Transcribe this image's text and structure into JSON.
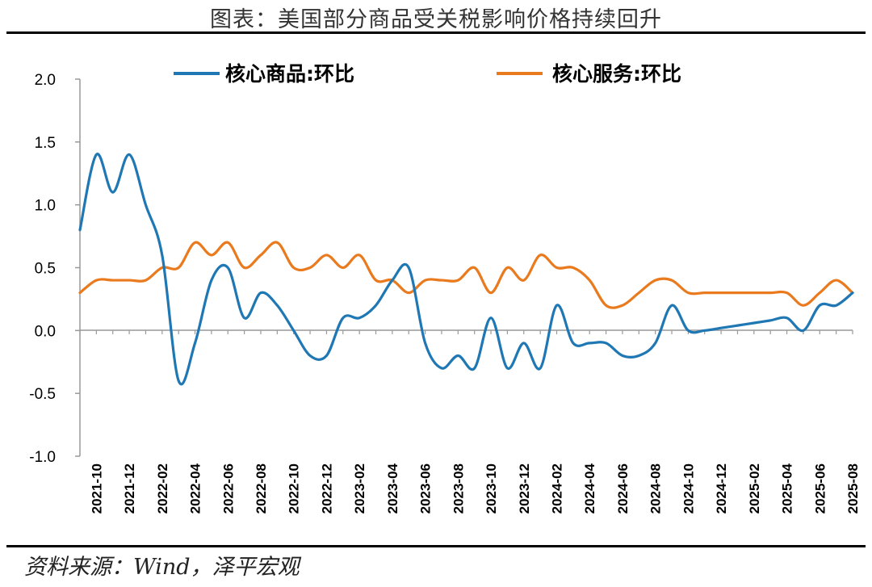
{
  "title": "图表：美国部分商品受关税影响价格持续回升",
  "source": "资料来源：Wind，泽平宏观",
  "chart_data": {
    "type": "line",
    "ylim": [
      -1.0,
      2.0
    ],
    "yticks": [
      2.0,
      1.5,
      1.0,
      0.5,
      0.0,
      -0.5,
      -1.0
    ],
    "ytick_labels": [
      "2.0",
      "1.5",
      "1.0",
      "0.5",
      "0.0",
      "-0.5",
      "-1.0"
    ],
    "xlabel": "",
    "ylabel": "",
    "categories": [
      "2021-09",
      "2021-10",
      "2021-11",
      "2021-12",
      "2022-01",
      "2022-02",
      "2022-03",
      "2022-04",
      "2022-05",
      "2022-06",
      "2022-07",
      "2022-08",
      "2022-09",
      "2022-10",
      "2022-11",
      "2022-12",
      "2023-01",
      "2023-02",
      "2023-03",
      "2023-04",
      "2023-05",
      "2023-06",
      "2023-07",
      "2023-08",
      "2023-09",
      "2023-10",
      "2023-11",
      "2023-12",
      "2024-01",
      "2024-02",
      "2024-03",
      "2024-04",
      "2024-05",
      "2024-06",
      "2024-07",
      "2024-08",
      "2024-09",
      "2024-10",
      "2024-11",
      "2024-12",
      "2025-01",
      "2025-02",
      "2025-03",
      "2025-04",
      "2025-05",
      "2025-06",
      "2025-07",
      "2025-08"
    ],
    "xtick_labels": [
      "2021-10",
      "2021-12",
      "2022-02",
      "2022-04",
      "2022-06",
      "2022-08",
      "2022-10",
      "2022-12",
      "2023-02",
      "2023-04",
      "2023-06",
      "2023-08",
      "2023-10",
      "2023-12",
      "2024-02",
      "2024-04",
      "2024-06",
      "2024-08",
      "2024-10",
      "2024-12",
      "2025-02",
      "2025-04",
      "2025-06",
      "2025-08"
    ],
    "series": [
      {
        "name": "核心商品:环比",
        "color": "#1f77b4",
        "values": [
          0.8,
          1.4,
          1.1,
          1.4,
          1.0,
          0.6,
          -0.4,
          -0.1,
          0.4,
          0.5,
          0.1,
          0.3,
          0.2,
          0.0,
          -0.2,
          -0.2,
          0.1,
          0.1,
          0.2,
          0.4,
          0.5,
          -0.1,
          -0.3,
          -0.2,
          -0.3,
          0.1,
          -0.3,
          -0.1,
          -0.3,
          0.2,
          -0.1,
          -0.1,
          -0.1,
          -0.2,
          -0.2,
          -0.1,
          0.2,
          0.0,
          0.0,
          0.02,
          0.04,
          0.06,
          0.08,
          0.1,
          0.0,
          0.2,
          0.2,
          0.3
        ]
      },
      {
        "name": "核心服务:环比",
        "color": "#e97a1e",
        "values": [
          0.3,
          0.4,
          0.4,
          0.4,
          0.4,
          0.5,
          0.5,
          0.7,
          0.6,
          0.7,
          0.5,
          0.6,
          0.7,
          0.5,
          0.5,
          0.6,
          0.5,
          0.6,
          0.4,
          0.4,
          0.3,
          0.4,
          0.4,
          0.4,
          0.5,
          0.3,
          0.5,
          0.4,
          0.6,
          0.5,
          0.5,
          0.4,
          0.2,
          0.2,
          0.3,
          0.4,
          0.4,
          0.3,
          0.3,
          0.3,
          0.3,
          0.3,
          0.3,
          0.3,
          0.2,
          0.3,
          0.4,
          0.3
        ]
      }
    ]
  }
}
